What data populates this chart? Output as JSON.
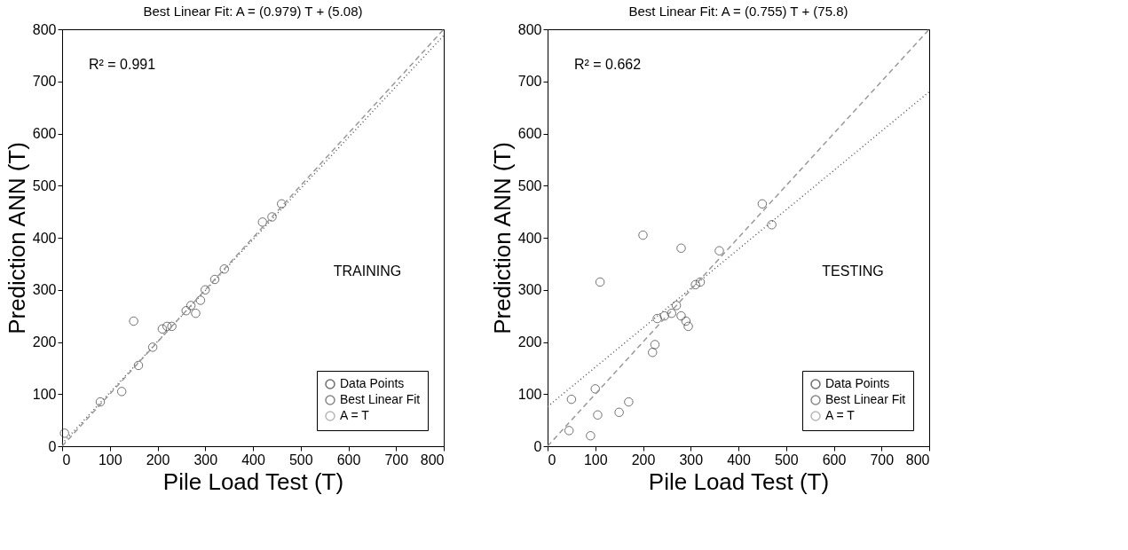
{
  "chart_data": [
    {
      "type": "scatter",
      "title": "Best Linear Fit:  A = (0.979) T + (5.08)",
      "xlabel": "Pile Load Test (T)",
      "ylabel": "Prediction ANN (T)",
      "xlim": [
        0,
        800
      ],
      "ylim": [
        0,
        800
      ],
      "xticks": [
        0,
        100,
        200,
        300,
        400,
        500,
        600,
        700,
        800
      ],
      "yticks": [
        0,
        100,
        200,
        300,
        400,
        500,
        600,
        700,
        800
      ],
      "grid": false,
      "legend": "bottom right",
      "annotations": [
        "R² = 0.991",
        "TRAINING"
      ],
      "series": [
        {
          "name": "Data Points",
          "marker": "circle",
          "color": "#333333",
          "x": [
            5,
            80,
            125,
            150,
            160,
            190,
            210,
            220,
            230,
            260,
            270,
            280,
            290,
            300,
            320,
            340,
            420,
            440,
            460
          ],
          "values": [
            25,
            85,
            105,
            240,
            155,
            190,
            225,
            230,
            230,
            260,
            270,
            255,
            280,
            300,
            320,
            340,
            430,
            440,
            465
          ]
        },
        {
          "name": "Best Linear Fit",
          "type": "line",
          "line_style": "dotted",
          "color": "#555555",
          "x": [
            0,
            800
          ],
          "values": [
            5,
            788
          ]
        },
        {
          "name": "A = T",
          "type": "line",
          "line_style": "dashed",
          "color": "#999999",
          "x": [
            0,
            800
          ],
          "values": [
            0,
            800
          ]
        }
      ]
    },
    {
      "type": "scatter",
      "title": "Best Linear Fit:  A = (0.755) T + (75.8)",
      "xlabel": "Pile Load Test (T)",
      "ylabel": "Prediction ANN (T)",
      "xlim": [
        0,
        800
      ],
      "ylim": [
        0,
        800
      ],
      "xticks": [
        0,
        100,
        200,
        300,
        400,
        500,
        600,
        700,
        800
      ],
      "yticks": [
        0,
        100,
        200,
        300,
        400,
        500,
        600,
        700,
        800
      ],
      "grid": false,
      "legend": "bottom right",
      "annotations": [
        "R² = 0.662",
        "TESTING"
      ],
      "series": [
        {
          "name": "Data Points",
          "marker": "circle",
          "color": "#333333",
          "x": [
            45,
            50,
            90,
            100,
            105,
            110,
            150,
            170,
            200,
            220,
            225,
            230,
            245,
            260,
            270,
            280,
            290,
            295,
            280,
            310,
            320,
            360,
            450,
            470
          ],
          "values": [
            30,
            90,
            20,
            110,
            60,
            315,
            65,
            85,
            405,
            180,
            195,
            245,
            250,
            255,
            270,
            250,
            240,
            230,
            380,
            310,
            315,
            375,
            465,
            425
          ]
        },
        {
          "name": "Best Linear Fit",
          "type": "line",
          "line_style": "dotted",
          "color": "#555555",
          "x": [
            0,
            800
          ],
          "values": [
            76,
            680
          ]
        },
        {
          "name": "A = T",
          "type": "line",
          "line_style": "dashed",
          "color": "#999999",
          "x": [
            0,
            800
          ],
          "values": [
            0,
            800
          ]
        }
      ]
    }
  ]
}
